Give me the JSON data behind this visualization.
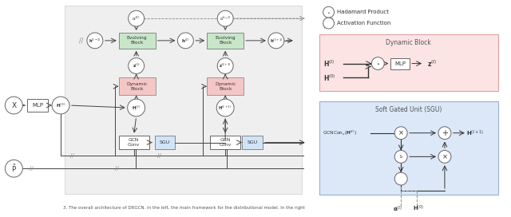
{
  "bg_color": "#ffffff",
  "shadow_box_color": "#e8e8e8",
  "evolving_block_color": "#c8e6c9",
  "dynamic_block_color": "#f5c6c6",
  "sgu_small_color": "#d0e4f7",
  "caption": "3. The overall architecture of DRGCN. In the left, the main framework for the distributional model. In the right",
  "hadamard_label": "Hadamard Product",
  "activation_label": "Activation Function",
  "dynamic_block_right_color": "#fadadd",
  "sgu_right_color": "#dce8f8"
}
